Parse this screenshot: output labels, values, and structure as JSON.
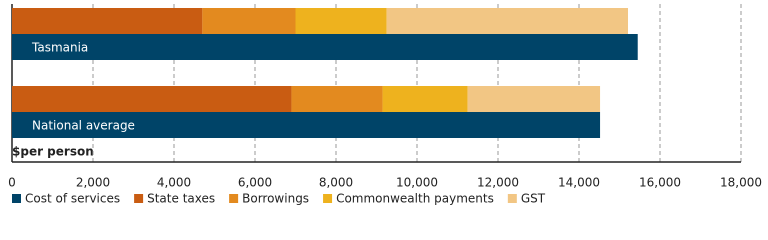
{
  "chart_data": {
    "type": "bar",
    "orientation": "horizontal",
    "categories": [
      "Tasmania",
      "National average"
    ],
    "series": [
      {
        "name": "Cost of services",
        "color": "#004468",
        "stacked": false,
        "values": [
          15450,
          14520
        ]
      },
      {
        "name": "State taxes",
        "color": "#c95c12",
        "stacked": true,
        "values": [
          4700,
          6900
        ]
      },
      {
        "name": "Borrowings",
        "color": "#e38a1f",
        "stacked": true,
        "values": [
          2300,
          2250
        ]
      },
      {
        "name": "Commonwealth payments",
        "color": "#eeb21e",
        "stacked": true,
        "values": [
          2250,
          2100
        ]
      },
      {
        "name": "GST",
        "color": "#f2c684",
        "stacked": true,
        "values": [
          5960,
          3270
        ]
      }
    ],
    "xlabel": "$per person",
    "xlim": [
      0,
      18000
    ],
    "xticks": [
      0,
      {
        "value": 2000,
        "label": "2,000"
      },
      {
        "value": 4000,
        "label": "4,000"
      },
      {
        "value": 6000,
        "label": "6,000"
      },
      {
        "value": 8000,
        "label": "8,000"
      },
      {
        "value": 10000,
        "label": "10,000"
      },
      {
        "value": 12000,
        "label": "12,000"
      },
      {
        "value": 14000,
        "label": "14,000"
      },
      {
        "value": 16000,
        "label": "16,000"
      },
      {
        "value": 18000,
        "label": "18,000"
      }
    ],
    "grid": true,
    "legend": "bottom"
  }
}
